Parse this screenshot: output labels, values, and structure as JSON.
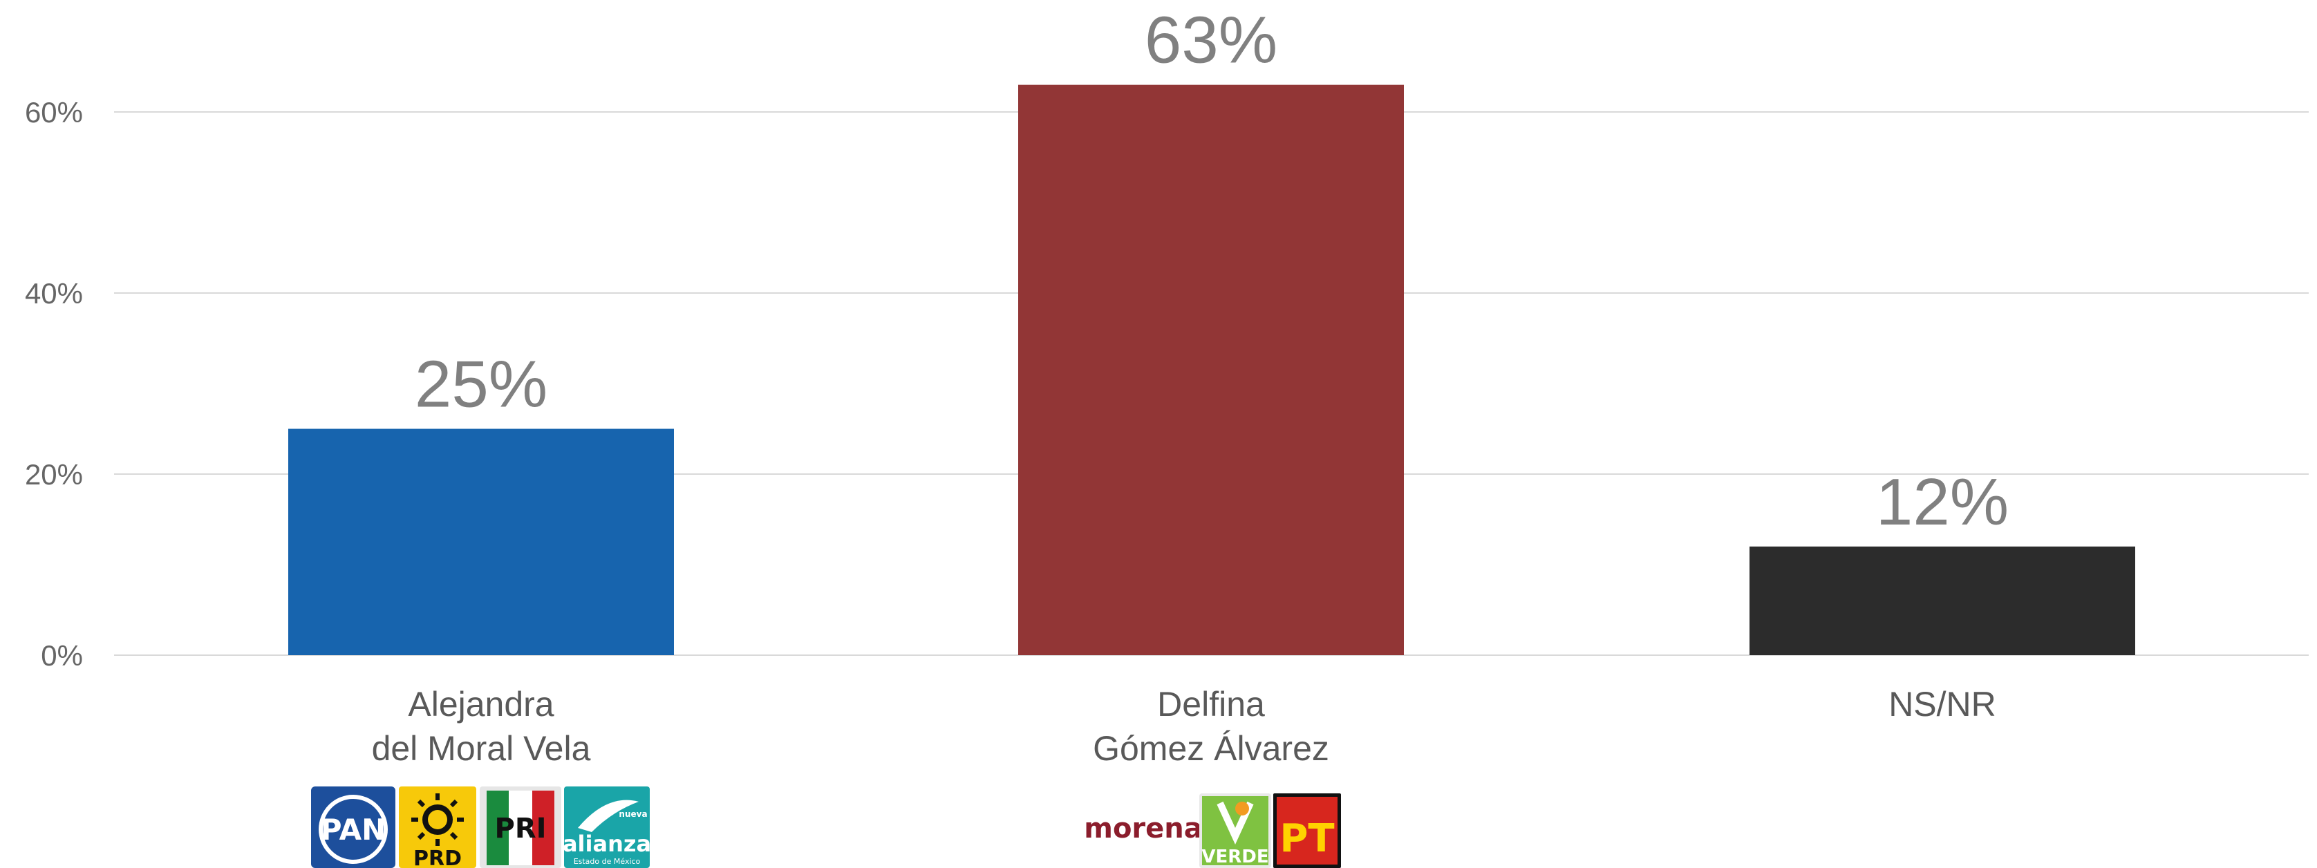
{
  "chart_data": {
    "type": "bar",
    "categories": [
      {
        "lines": [
          "Alejandra",
          "del Moral Vela"
        ],
        "value": 25,
        "label": "25%",
        "color": "#1764ae"
      },
      {
        "lines": [
          "Delfina",
          "Gómez Álvarez"
        ],
        "value": 63,
        "label": "63%",
        "color": "#923636"
      },
      {
        "lines": [
          "NS/NR"
        ],
        "value": 12,
        "label": "12%",
        "color": "#2c2c2c"
      }
    ],
    "yticks": [
      {
        "value": 0,
        "label": "0%"
      },
      {
        "value": 20,
        "label": "20%"
      },
      {
        "value": 40,
        "label": "40%"
      },
      {
        "value": 60,
        "label": "60%"
      }
    ],
    "ylim": [
      0,
      60
    ],
    "grid": true,
    "gridColor": "#d9d9d9"
  },
  "logos": {
    "candidate1": [
      {
        "icon": "pan-logo-icon",
        "text": "PAN"
      },
      {
        "icon": "prd-logo-icon",
        "text": "PRD"
      },
      {
        "icon": "pri-logo-icon",
        "text": "PRI"
      },
      {
        "icon": "nueva-alianza-logo-icon",
        "text": "alianza",
        "small_top": "nueva",
        "small_bottom": "Estado de México"
      }
    ],
    "candidate2": [
      {
        "icon": "morena-logo-icon",
        "text": "morena"
      },
      {
        "icon": "verde-logo-icon",
        "text": "VERDE"
      },
      {
        "icon": "pt-logo-icon",
        "text": "PT"
      }
    ]
  }
}
